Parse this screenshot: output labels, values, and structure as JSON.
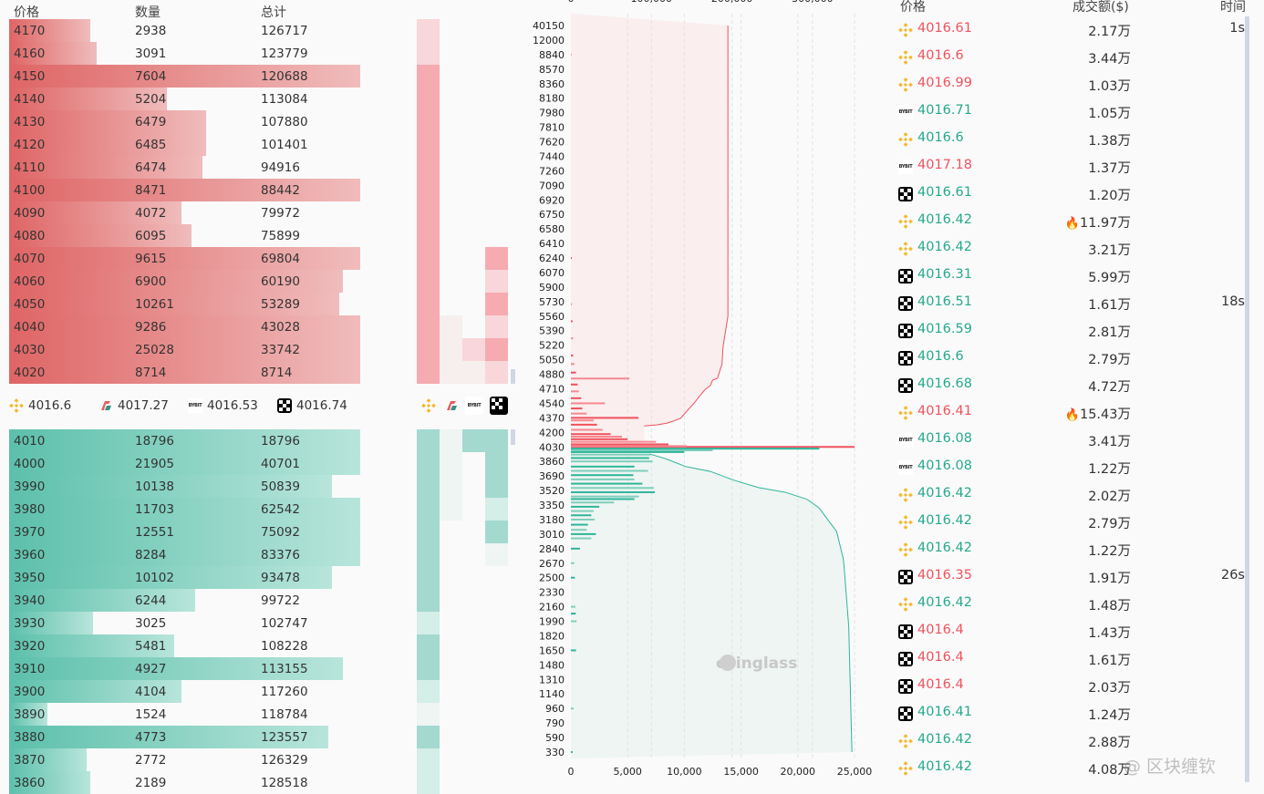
{
  "orderbook": {
    "headers": {
      "price": "价格",
      "qty": "数量",
      "total": "总计"
    },
    "colors": {
      "ask": "#e06666",
      "bid": "#5bbfaa"
    },
    "asks": [
      {
        "price": "4170",
        "qty": "2938",
        "total": "126717",
        "fill": 0.23
      },
      {
        "price": "4160",
        "qty": "3091",
        "total": "123779",
        "fill": 0.25
      },
      {
        "price": "4150",
        "qty": "7604",
        "total": "120688",
        "fill": 1
      },
      {
        "price": "4140",
        "qty": "5204",
        "total": "113084",
        "fill": 0.45
      },
      {
        "price": "4130",
        "qty": "6479",
        "total": "107880",
        "fill": 0.56
      },
      {
        "price": "4120",
        "qty": "6485",
        "total": "101401",
        "fill": 0.56
      },
      {
        "price": "4110",
        "qty": "6474",
        "total": "94916",
        "fill": 0.55
      },
      {
        "price": "4100",
        "qty": "8471",
        "total": "88442",
        "fill": 1
      },
      {
        "price": "4090",
        "qty": "4072",
        "total": "79972",
        "fill": 0.49
      },
      {
        "price": "4080",
        "qty": "6095",
        "total": "75899",
        "fill": 0.52
      },
      {
        "price": "4070",
        "qty": "9615",
        "total": "69804",
        "fill": 1
      },
      {
        "price": "4060",
        "qty": "6900",
        "total": "60190",
        "fill": 0.95
      },
      {
        "price": "4050",
        "qty": "10261",
        "total": "53289",
        "fill": 0.94
      },
      {
        "price": "4040",
        "qty": "9286",
        "total": "43028",
        "fill": 1
      },
      {
        "price": "4030",
        "qty": "25028",
        "total": "33742",
        "fill": 1
      },
      {
        "price": "4020",
        "qty": "8714",
        "total": "8714",
        "fill": 1
      }
    ],
    "bids": [
      {
        "price": "4010",
        "qty": "18796",
        "total": "18796",
        "fill": 1
      },
      {
        "price": "4000",
        "qty": "21905",
        "total": "40701",
        "fill": 1
      },
      {
        "price": "3990",
        "qty": "10138",
        "total": "50839",
        "fill": 0.92
      },
      {
        "price": "3980",
        "qty": "11703",
        "total": "62542",
        "fill": 1
      },
      {
        "price": "3970",
        "qty": "12551",
        "total": "75092",
        "fill": 1
      },
      {
        "price": "3960",
        "qty": "8284",
        "total": "83376",
        "fill": 1
      },
      {
        "price": "3950",
        "qty": "10102",
        "total": "93478",
        "fill": 0.92
      },
      {
        "price": "3940",
        "qty": "6244",
        "total": "99722",
        "fill": 0.53
      },
      {
        "price": "3930",
        "qty": "3025",
        "total": "102747",
        "fill": 0.24
      },
      {
        "price": "3920",
        "qty": "5481",
        "total": "108228",
        "fill": 0.47
      },
      {
        "price": "3910",
        "qty": "4927",
        "total": "113155",
        "fill": 0.95
      },
      {
        "price": "3900",
        "qty": "4104",
        "total": "117260",
        "fill": 0.49
      },
      {
        "price": "3890",
        "qty": "1524",
        "total": "118784",
        "fill": 0.11
      },
      {
        "price": "3880",
        "qty": "4773",
        "total": "123557",
        "fill": 0.91
      },
      {
        "price": "3870",
        "qty": "2772",
        "total": "126329",
        "fill": 0.22
      },
      {
        "price": "3860",
        "qty": "2189",
        "total": "128518",
        "fill": 0.23
      }
    ]
  },
  "exchange_prices": [
    {
      "icon": "binance-icon",
      "price": "4016.6"
    },
    {
      "icon": "slash-exchange-icon",
      "price": "4017.27"
    },
    {
      "icon": "bybit-icon",
      "price": "4016.53"
    },
    {
      "icon": "okx-icon",
      "price": "4016.74"
    }
  ],
  "heatmap": {
    "exchanges": [
      "binance-icon",
      "slash-exchange-icon",
      "bybit-icon",
      "okx-icon"
    ],
    "ask_levels": [
      [
        2,
        2,
        3,
        3,
        3,
        3,
        3,
        3,
        3,
        3,
        3,
        3,
        3,
        3,
        3,
        3
      ],
      [
        0,
        0,
        0,
        0,
        0,
        0,
        0,
        0,
        0,
        0,
        0,
        0,
        0,
        1,
        1,
        1
      ],
      [
        0,
        0,
        0,
        0,
        0,
        0,
        0,
        0,
        0,
        0,
        0,
        0,
        0,
        0,
        2,
        1
      ],
      [
        0,
        0,
        0,
        0,
        0,
        0,
        0,
        0,
        0,
        0,
        3,
        2,
        3,
        2,
        3,
        2
      ]
    ],
    "bid_levels": [
      [
        3,
        3,
        3,
        3,
        3,
        3,
        3,
        3,
        2,
        3,
        3,
        2,
        1,
        3,
        2,
        2
      ],
      [
        1,
        1,
        1,
        1,
        0,
        0,
        0,
        0,
        0,
        0,
        0,
        0,
        0,
        0,
        0,
        0
      ],
      [
        3,
        0,
        0,
        0,
        0,
        0,
        0,
        0,
        0,
        0,
        0,
        0,
        0,
        0,
        0,
        0
      ],
      [
        3,
        3,
        3,
        2,
        3,
        1,
        0,
        0,
        0,
        0,
        0,
        0,
        0,
        0,
        0,
        0
      ]
    ]
  },
  "chart_data": {
    "type": "bar",
    "orientation": "horizontal",
    "y_tick_labels": [
      "40150",
      "12000",
      "8840",
      "8570",
      "8360",
      "8180",
      "7980",
      "7810",
      "7620",
      "7440",
      "7260",
      "7090",
      "6920",
      "6750",
      "6580",
      "6410",
      "6240",
      "6070",
      "5900",
      "5730",
      "5560",
      "5390",
      "5220",
      "5050",
      "4880",
      "4710",
      "4540",
      "4370",
      "4200",
      "4030",
      "3860",
      "3690",
      "3520",
      "3350",
      "3180",
      "3010",
      "2840",
      "2670",
      "2500",
      "2330",
      "2160",
      "1990",
      "1820",
      "1650",
      "1480",
      "1310",
      "1140",
      "960",
      "790",
      "590",
      "330"
    ],
    "x_bottom_ticks": [
      "0",
      "5,000",
      "10,000",
      "15,000",
      "20,000",
      "25,000"
    ],
    "x_bottom_range": [
      0,
      25000
    ],
    "x_top_ticks": [
      "0",
      "100,000",
      "200,000",
      "300,000"
    ],
    "x_top_range": [
      0,
      350000
    ],
    "grid": "vertical dashed",
    "watermark": "coinglass",
    "ask_color": "#f0525e",
    "bid_color": "#2fb59a",
    "ask_bars": [
      [
        4030,
        25000
      ],
      [
        4040,
        10200
      ],
      [
        4060,
        8600
      ],
      [
        4090,
        7500
      ],
      [
        4120,
        5000
      ],
      [
        4150,
        4500
      ],
      [
        4180,
        3500
      ],
      [
        4230,
        2800
      ],
      [
        4290,
        2300
      ],
      [
        4340,
        2000
      ],
      [
        4370,
        5950
      ],
      [
        4420,
        1400
      ],
      [
        4480,
        1000
      ],
      [
        4540,
        3000
      ],
      [
        4600,
        900
      ],
      [
        4680,
        700
      ],
      [
        4760,
        600
      ],
      [
        4830,
        5150
      ],
      [
        4900,
        450
      ],
      [
        5000,
        300
      ],
      [
        5100,
        200
      ],
      [
        5300,
        200
      ],
      [
        5500,
        150
      ],
      [
        5700,
        100
      ],
      [
        6240,
        80
      ],
      [
        8840,
        60
      ]
    ],
    "bid_bars": [
      [
        4010,
        21900
      ],
      [
        3990,
        12500
      ],
      [
        3970,
        10000
      ],
      [
        3940,
        7000
      ],
      [
        3900,
        6900
      ],
      [
        3860,
        7200
      ],
      [
        3800,
        5600
      ],
      [
        3750,
        6800
      ],
      [
        3700,
        5500
      ],
      [
        3650,
        5600
      ],
      [
        3600,
        6300
      ],
      [
        3550,
        7300
      ],
      [
        3500,
        7400
      ],
      [
        3450,
        6000
      ],
      [
        3420,
        5600
      ],
      [
        3380,
        3800
      ],
      [
        3330,
        2500
      ],
      [
        3280,
        2000
      ],
      [
        3230,
        1800
      ],
      [
        3180,
        2100
      ],
      [
        3120,
        1500
      ],
      [
        3060,
        1400
      ],
      [
        3010,
        2200
      ],
      [
        2960,
        1800
      ],
      [
        2840,
        800
      ],
      [
        2670,
        300
      ],
      [
        2500,
        350
      ],
      [
        2160,
        400
      ],
      [
        2080,
        430
      ],
      [
        1990,
        500
      ],
      [
        1650,
        450
      ],
      [
        960,
        250
      ],
      [
        330,
        150
      ]
    ],
    "ask_cumulative": [
      [
        40150,
        195000
      ],
      [
        5560,
        195000
      ],
      [
        5206,
        189000
      ],
      [
        4999,
        187600
      ],
      [
        4832,
        182000
      ],
      [
        4812,
        176000
      ],
      [
        4747,
        173000
      ],
      [
        4705,
        167000
      ],
      [
        4650,
        162000
      ],
      [
        4543,
        153000
      ],
      [
        4438,
        143000
      ],
      [
        4363,
        136000
      ],
      [
        4309,
        120000
      ],
      [
        4288,
        106000
      ],
      [
        4276,
        91000
      ]
    ],
    "bid_cumulative": [
      [
        3947,
        98000
      ],
      [
        3894,
        117000
      ],
      [
        3799,
        143000
      ],
      [
        3744,
        173000
      ],
      [
        3639,
        203000
      ],
      [
        3554,
        233000
      ],
      [
        3500,
        266000
      ],
      [
        3418,
        293000
      ],
      [
        3318,
        308000
      ],
      [
        3041,
        330000
      ],
      [
        2731,
        338000
      ],
      [
        2660,
        339000
      ],
      [
        1932,
        345000
      ],
      [
        330,
        349000
      ]
    ]
  },
  "trades": {
    "headers": {
      "price": "价格",
      "amount": "成交额($)",
      "time": "时间"
    },
    "colors": {
      "buy": "#26a98d",
      "sell": "#f0525e"
    },
    "rows": [
      {
        "ex": "binance",
        "price": "4016.61",
        "side": "sell",
        "amount": "2.17万",
        "time": "1s"
      },
      {
        "ex": "binance",
        "price": "4016.6",
        "side": "sell",
        "amount": "3.44万",
        "time": ""
      },
      {
        "ex": "binance",
        "price": "4016.99",
        "side": "sell",
        "amount": "1.03万",
        "time": ""
      },
      {
        "ex": "bybit",
        "price": "4016.71",
        "side": "buy",
        "amount": "1.05万",
        "time": ""
      },
      {
        "ex": "binance",
        "price": "4016.6",
        "side": "buy",
        "amount": "1.38万",
        "time": ""
      },
      {
        "ex": "bybit",
        "price": "4017.18",
        "side": "sell",
        "amount": "1.37万",
        "time": ""
      },
      {
        "ex": "okx",
        "price": "4016.61",
        "side": "buy",
        "amount": "1.20万",
        "time": ""
      },
      {
        "ex": "binance",
        "price": "4016.42",
        "side": "buy",
        "amount": "11.97万",
        "time": "",
        "hot": true
      },
      {
        "ex": "binance",
        "price": "4016.42",
        "side": "buy",
        "amount": "3.21万",
        "time": ""
      },
      {
        "ex": "okx",
        "price": "4016.31",
        "side": "buy",
        "amount": "5.99万",
        "time": ""
      },
      {
        "ex": "okx",
        "price": "4016.51",
        "side": "buy",
        "amount": "1.61万",
        "time": "18s"
      },
      {
        "ex": "okx",
        "price": "4016.59",
        "side": "buy",
        "amount": "2.81万",
        "time": ""
      },
      {
        "ex": "okx",
        "price": "4016.6",
        "side": "buy",
        "amount": "2.79万",
        "time": ""
      },
      {
        "ex": "okx",
        "price": "4016.68",
        "side": "buy",
        "amount": "4.72万",
        "time": ""
      },
      {
        "ex": "binance",
        "price": "4016.41",
        "side": "sell",
        "amount": "15.43万",
        "time": "",
        "hot": true
      },
      {
        "ex": "bybit",
        "price": "4016.08",
        "side": "buy",
        "amount": "3.41万",
        "time": ""
      },
      {
        "ex": "bybit",
        "price": "4016.08",
        "side": "buy",
        "amount": "1.22万",
        "time": ""
      },
      {
        "ex": "binance",
        "price": "4016.42",
        "side": "buy",
        "amount": "2.02万",
        "time": ""
      },
      {
        "ex": "binance",
        "price": "4016.42",
        "side": "buy",
        "amount": "2.79万",
        "time": ""
      },
      {
        "ex": "binance",
        "price": "4016.42",
        "side": "buy",
        "amount": "1.22万",
        "time": ""
      },
      {
        "ex": "okx",
        "price": "4016.35",
        "side": "sell",
        "amount": "1.91万",
        "time": "26s"
      },
      {
        "ex": "binance",
        "price": "4016.42",
        "side": "buy",
        "amount": "1.48万",
        "time": ""
      },
      {
        "ex": "okx",
        "price": "4016.4",
        "side": "sell",
        "amount": "1.43万",
        "time": ""
      },
      {
        "ex": "okx",
        "price": "4016.4",
        "side": "sell",
        "amount": "1.61万",
        "time": ""
      },
      {
        "ex": "okx",
        "price": "4016.4",
        "side": "sell",
        "amount": "2.03万",
        "time": ""
      },
      {
        "ex": "okx",
        "price": "4016.41",
        "side": "buy",
        "amount": "1.24万",
        "time": ""
      },
      {
        "ex": "binance",
        "price": "4016.42",
        "side": "buy",
        "amount": "2.88万",
        "time": ""
      },
      {
        "ex": "binance",
        "price": "4016.42",
        "side": "buy",
        "amount": "4.08万",
        "time": ""
      }
    ]
  },
  "watermark_text": "@ 区块缠钦"
}
